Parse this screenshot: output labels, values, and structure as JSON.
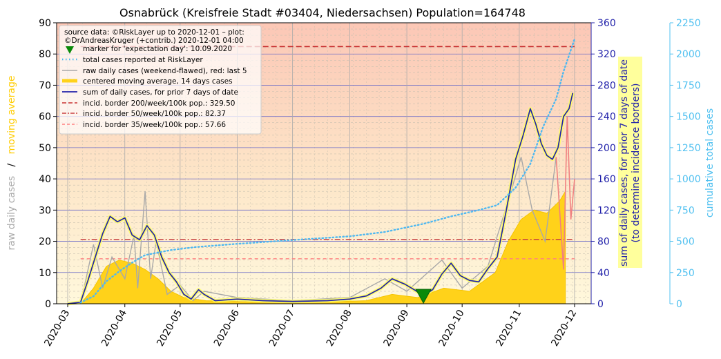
{
  "chart_data": {
    "type": "line",
    "title": "Osnabrück (Kreisfreie Stadt #03404, Niedersachsen) Population=164748",
    "x_ticks": [
      "2020-03",
      "2020-04",
      "2020-05",
      "2020-06",
      "2020-07",
      "2020-08",
      "2020-09",
      "2020-10",
      "2020-11",
      "2020-12"
    ],
    "x_range": [
      "2020-02-24",
      "2020-12-10"
    ],
    "y_left": {
      "label_parts": [
        "raw daily cases",
        "/",
        "moving average"
      ],
      "range": [
        0,
        90
      ],
      "ticks": [
        0,
        10,
        20,
        30,
        40,
        50,
        60,
        70,
        80,
        90
      ]
    },
    "y_right1": {
      "label": "sum of daily cases, for prior 7 days of date\n(to determine incidence borders)",
      "range": [
        0,
        360
      ],
      "ticks": [
        0,
        40,
        80,
        120,
        160,
        200,
        240,
        280,
        320,
        360
      ]
    },
    "y_right2": {
      "label": "cumulative total cases",
      "range": [
        0,
        2250
      ],
      "ticks": [
        0,
        250,
        500,
        750,
        1000,
        1250,
        1500,
        1750,
        2000,
        2250
      ]
    },
    "legend": {
      "header": [
        "source data: ©RiskLayer up to 2020-12-01 – plot:",
        "©DrAndreasKruger (+contrib.) 2020-12-01 04:00"
      ],
      "entries": [
        "marker for 'expectation day': 10.09.2020",
        "total cases reported at RiskLayer",
        "raw daily cases (weekend-flawed), red: last 5",
        "centered moving average, 14 days cases",
        "sum of daily cases, for prior 7 days of date",
        "incid. border 200/week/100k pop.: 329.50",
        "incid. border 50/week/100k pop.: 82.37",
        "incid. border 35/week/100k pop.: 57.66"
      ],
      "placement": "top-left"
    },
    "incidence_borders": [
      {
        "label": "incid. border 200/week/100k pop.: 329.50",
        "value": 329.5
      },
      {
        "label": "incid. border 50/week/100k pop.: 82.37",
        "value": 82.37
      },
      {
        "label": "incid. border 35/week/100k pop.: 57.66",
        "value": 57.66
      }
    ],
    "expectation_day": "2020-09-10",
    "series": [
      {
        "name": "sum of daily cases, for prior 7 days of date",
        "axis": "y_right1",
        "points": [
          [
            "2020-03-01",
            0
          ],
          [
            "2020-03-08",
            2
          ],
          [
            "2020-03-12",
            30
          ],
          [
            "2020-03-16",
            60
          ],
          [
            "2020-03-20",
            90
          ],
          [
            "2020-03-24",
            112
          ],
          [
            "2020-03-28",
            105
          ],
          [
            "2020-04-01",
            110
          ],
          [
            "2020-04-05",
            88
          ],
          [
            "2020-04-09",
            82
          ],
          [
            "2020-04-13",
            100
          ],
          [
            "2020-04-17",
            88
          ],
          [
            "2020-04-21",
            60
          ],
          [
            "2020-04-25",
            40
          ],
          [
            "2020-04-29",
            28
          ],
          [
            "2020-05-03",
            12
          ],
          [
            "2020-05-07",
            6
          ],
          [
            "2020-05-11",
            18
          ],
          [
            "2020-05-14",
            12
          ],
          [
            "2020-05-20",
            4
          ],
          [
            "2020-06-01",
            6
          ],
          [
            "2020-06-15",
            4
          ],
          [
            "2020-07-01",
            3
          ],
          [
            "2020-07-20",
            4
          ],
          [
            "2020-08-01",
            6
          ],
          [
            "2020-08-10",
            10
          ],
          [
            "2020-08-18",
            20
          ],
          [
            "2020-08-24",
            32
          ],
          [
            "2020-08-31",
            25
          ],
          [
            "2020-09-05",
            18
          ],
          [
            "2020-09-10",
            10
          ],
          [
            "2020-09-15",
            18
          ],
          [
            "2020-09-20",
            38
          ],
          [
            "2020-09-25",
            52
          ],
          [
            "2020-09-30",
            36
          ],
          [
            "2020-10-05",
            30
          ],
          [
            "2020-10-10",
            28
          ],
          [
            "2020-10-15",
            45
          ],
          [
            "2020-10-20",
            60
          ],
          [
            "2020-10-25",
            120
          ],
          [
            "2020-10-30",
            185
          ],
          [
            "2020-11-03",
            215
          ],
          [
            "2020-11-07",
            250
          ],
          [
            "2020-11-10",
            230
          ],
          [
            "2020-11-13",
            205
          ],
          [
            "2020-11-16",
            190
          ],
          [
            "2020-11-19",
            185
          ],
          [
            "2020-11-22",
            200
          ],
          [
            "2020-11-25",
            240
          ],
          [
            "2020-11-28",
            250
          ],
          [
            "2020-11-30",
            270
          ]
        ]
      },
      {
        "name": "total cases reported at RiskLayer",
        "axis": "y_right2",
        "points": [
          [
            "2020-03-08",
            10
          ],
          [
            "2020-03-15",
            60
          ],
          [
            "2020-03-22",
            180
          ],
          [
            "2020-03-29",
            260
          ],
          [
            "2020-04-05",
            330
          ],
          [
            "2020-04-12",
            390
          ],
          [
            "2020-04-19",
            410
          ],
          [
            "2020-04-26",
            430
          ],
          [
            "2020-05-10",
            455
          ],
          [
            "2020-06-01",
            480
          ],
          [
            "2020-07-01",
            510
          ],
          [
            "2020-08-01",
            540
          ],
          [
            "2020-08-20",
            575
          ],
          [
            "2020-09-10",
            640
          ],
          [
            "2020-09-25",
            700
          ],
          [
            "2020-10-10",
            750
          ],
          [
            "2020-10-20",
            790
          ],
          [
            "2020-10-30",
            930
          ],
          [
            "2020-11-07",
            1120
          ],
          [
            "2020-11-14",
            1420
          ],
          [
            "2020-11-21",
            1640
          ],
          [
            "2020-11-25",
            1860
          ],
          [
            "2020-12-01",
            2120
          ]
        ]
      },
      {
        "name": "centered moving average, 14 days cases",
        "axis": "y_left",
        "points": [
          [
            "2020-03-08",
            0
          ],
          [
            "2020-03-15",
            5
          ],
          [
            "2020-03-22",
            12
          ],
          [
            "2020-03-29",
            14
          ],
          [
            "2020-04-05",
            13
          ],
          [
            "2020-04-12",
            11
          ],
          [
            "2020-04-19",
            8
          ],
          [
            "2020-04-26",
            4
          ],
          [
            "2020-05-03",
            2
          ],
          [
            "2020-05-15",
            1
          ],
          [
            "2020-06-15",
            0.5
          ],
          [
            "2020-07-15",
            0.5
          ],
          [
            "2020-08-10",
            1
          ],
          [
            "2020-08-24",
            3
          ],
          [
            "2020-09-07",
            2
          ],
          [
            "2020-09-21",
            5
          ],
          [
            "2020-10-05",
            4
          ],
          [
            "2020-10-19",
            10
          ],
          [
            "2020-10-26",
            20
          ],
          [
            "2020-11-02",
            27
          ],
          [
            "2020-11-09",
            30
          ],
          [
            "2020-11-16",
            29
          ],
          [
            "2020-11-23",
            33
          ],
          [
            "2020-11-26",
            36
          ]
        ]
      },
      {
        "name": "raw daily cases (weekend-flawed), red: last 5",
        "axis": "y_left",
        "points": [
          [
            "2020-03-08",
            0
          ],
          [
            "2020-03-15",
            19
          ],
          [
            "2020-03-20",
            5
          ],
          [
            "2020-03-25",
            15
          ],
          [
            "2020-04-01",
            8
          ],
          [
            "2020-04-06",
            22
          ],
          [
            "2020-04-08",
            5
          ],
          [
            "2020-04-12",
            36
          ],
          [
            "2020-04-15",
            8
          ],
          [
            "2020-04-18",
            20
          ],
          [
            "2020-04-24",
            3
          ],
          [
            "2020-05-01",
            6
          ],
          [
            "2020-05-08",
            1
          ],
          [
            "2020-05-14",
            4
          ],
          [
            "2020-06-01",
            2
          ],
          [
            "2020-07-01",
            1
          ],
          [
            "2020-08-01",
            2
          ],
          [
            "2020-08-20",
            8
          ],
          [
            "2020-09-01",
            4
          ],
          [
            "2020-09-20",
            14
          ],
          [
            "2020-10-01",
            5
          ],
          [
            "2020-10-15",
            12
          ],
          [
            "2020-10-26",
            33
          ],
          [
            "2020-11-02",
            47
          ],
          [
            "2020-11-08",
            30
          ],
          [
            "2020-11-15",
            20
          ],
          [
            "2020-11-21",
            47
          ],
          [
            "2020-11-25",
            11
          ],
          [
            "2020-11-27",
            60
          ],
          [
            "2020-11-29",
            27
          ],
          [
            "2020-12-01",
            40
          ]
        ]
      }
    ]
  }
}
